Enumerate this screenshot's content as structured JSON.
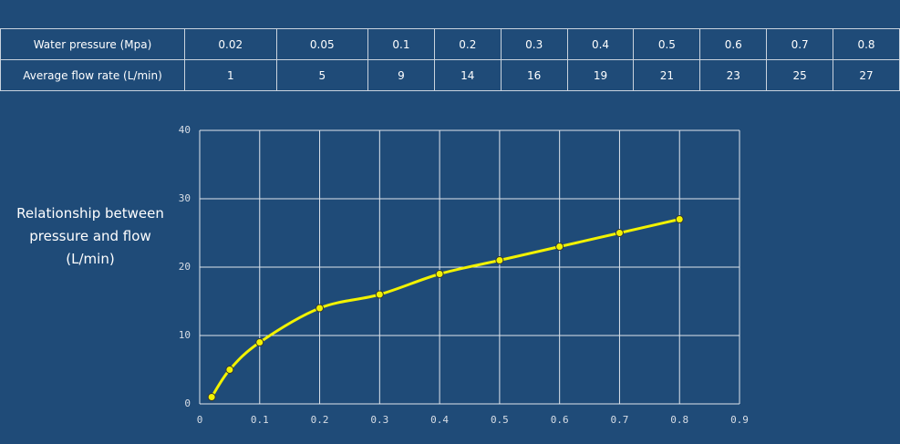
{
  "table": {
    "rows": [
      [
        "Water pressure  (Mpa)",
        "0.02",
        "0.05",
        "0.1",
        "0.2",
        "0.3",
        "0.4",
        "0.5",
        "0.6",
        "0.7",
        "0.8"
      ],
      [
        "Average flow rate  (L/min)",
        "1",
        "5",
        "9",
        "14",
        "16",
        "19",
        "21",
        "23",
        "25",
        "27"
      ]
    ]
  },
  "chart_data": {
    "type": "line",
    "title": "Relationship between pressure and flow (L/min)",
    "x": [
      0.02,
      0.05,
      0.1,
      0.2,
      0.3,
      0.4,
      0.5,
      0.6,
      0.7,
      0.8
    ],
    "series": [
      {
        "color": "#f2f200",
        "values": [
          1,
          5,
          9,
          14,
          16,
          19,
          21,
          23,
          25,
          27
        ]
      }
    ],
    "xlim": [
      0,
      0.9
    ],
    "xticks": [
      0,
      0.1,
      0.2,
      0.3,
      0.4,
      0.5,
      0.6,
      0.7,
      0.8,
      0.9
    ],
    "ylim": [
      0,
      40
    ],
    "yticks": [
      0,
      10,
      20,
      30,
      40
    ],
    "grid": true
  }
}
